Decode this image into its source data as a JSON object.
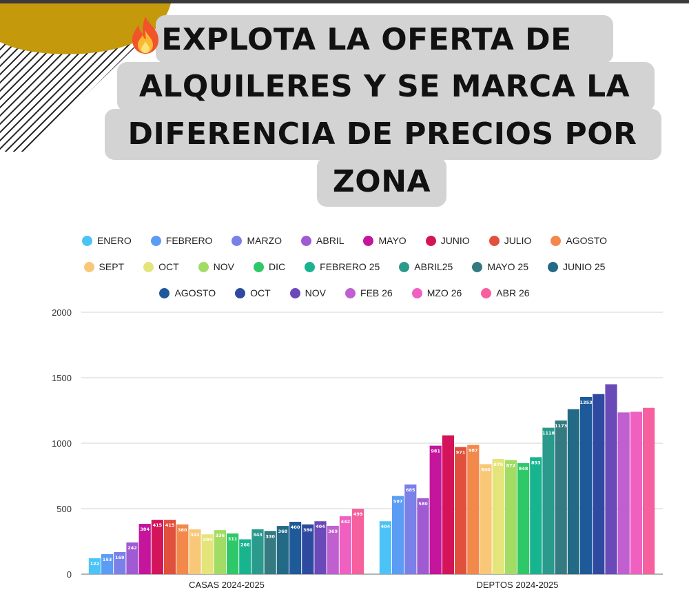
{
  "title_lines": [
    "EXPLOTA LA OFERTA DE",
    "ALQUILERES Y SE MARCA LA",
    "DIFERENCIA DE PRECIOS POR",
    "ZONA"
  ],
  "icons": {
    "title_icon": "fire-icon"
  },
  "colors": {
    "accent": "#c8a010",
    "title_bg": "#d2d3d2",
    "grid": "#dddddd"
  },
  "chart_data": {
    "type": "bar",
    "title": "EXPLOTA LA OFERTA DE ALQUILERES Y SE MARCA LA DIFERENCIA DE PRECIOS POR ZONA",
    "categories": [
      "CASAS 2024-2025",
      "DEPTOS 2024-2025"
    ],
    "ylim": [
      0,
      2000
    ],
    "yticks": [
      0,
      500,
      1000,
      1500,
      2000
    ],
    "grid": true,
    "legend_position": "top",
    "series": [
      {
        "name": "ENERO",
        "color": "#4cc3f7",
        "values": [
          122,
          404
        ],
        "labels": [
          "122",
          "404"
        ]
      },
      {
        "name": "FEBRERO",
        "color": "#5b9cf5",
        "values": [
          153,
          597
        ],
        "labels": [
          "153",
          "597"
        ]
      },
      {
        "name": "MARZO",
        "color": "#7b7fe8",
        "values": [
          169,
          685
        ],
        "labels": [
          "169",
          "685"
        ]
      },
      {
        "name": "ABRIL",
        "color": "#a05ad2",
        "values": [
          242,
          580
        ],
        "labels": [
          "242",
          "580"
        ]
      },
      {
        "name": "MAYO",
        "color": "#c4159c",
        "values": [
          384,
          981
        ],
        "labels": [
          "384",
          "981"
        ]
      },
      {
        "name": "JUNIO",
        "color": "#d4145a",
        "values": [
          415,
          1060
        ],
        "labels": [
          "415",
          ""
        ]
      },
      {
        "name": "JULIO",
        "color": "#e0503c",
        "values": [
          415,
          971
        ],
        "labels": [
          "415",
          "971"
        ]
      },
      {
        "name": "AGOSTO",
        "color": "#f2884a",
        "values": [
          380,
          987
        ],
        "labels": [
          "380",
          "987"
        ]
      },
      {
        "name": "SEPT",
        "color": "#f8c878",
        "values": [
          342,
          840
        ],
        "labels": [
          "342",
          "840"
        ]
      },
      {
        "name": "OCT",
        "color": "#e4e47a",
        "values": [
          304,
          879
        ],
        "labels": [
          "304",
          "879"
        ]
      },
      {
        "name": "NOV",
        "color": "#a2dc64",
        "values": [
          336,
          872
        ],
        "labels": [
          "336",
          "872"
        ]
      },
      {
        "name": "DIC",
        "color": "#2ec868",
        "values": [
          311,
          848
        ],
        "labels": [
          "311",
          "848"
        ]
      },
      {
        "name": "FEBRERO 25",
        "color": "#18b490",
        "values": [
          266,
          893
        ],
        "labels": [
          "266",
          "893"
        ]
      },
      {
        "name": "ABRIL25",
        "color": "#2a9a8c",
        "values": [
          343,
          1118
        ],
        "labels": [
          "343",
          "1118"
        ]
      },
      {
        "name": "MAYO 25",
        "color": "#347a80",
        "values": [
          330,
          1173
        ],
        "labels": [
          "330",
          "1173"
        ]
      },
      {
        "name": "JUNIO 25",
        "color": "#226a86",
        "values": [
          368,
          1260
        ],
        "labels": [
          "368",
          ""
        ]
      },
      {
        "name": "AGOSTO",
        "color": "#1e5a9a",
        "values": [
          400,
          1353
        ],
        "labels": [
          "400",
          "1353"
        ]
      },
      {
        "name": "OCT",
        "color": "#2e4aa0",
        "values": [
          380,
          1375
        ],
        "labels": [
          "380",
          ""
        ]
      },
      {
        "name": "NOV",
        "color": "#6a4ab8",
        "values": [
          404,
          1450
        ],
        "labels": [
          "404",
          ""
        ]
      },
      {
        "name": "FEB 26",
        "color": "#c060d0",
        "values": [
          369,
          1235
        ],
        "labels": [
          "369",
          ""
        ]
      },
      {
        "name": "MZO 26",
        "color": "#f060c0",
        "values": [
          442,
          1240
        ],
        "labels": [
          "442",
          ""
        ]
      },
      {
        "name": "ABR 26",
        "color": "#f6609e",
        "values": [
          499,
          1270
        ],
        "labels": [
          "499",
          ""
        ]
      }
    ]
  }
}
